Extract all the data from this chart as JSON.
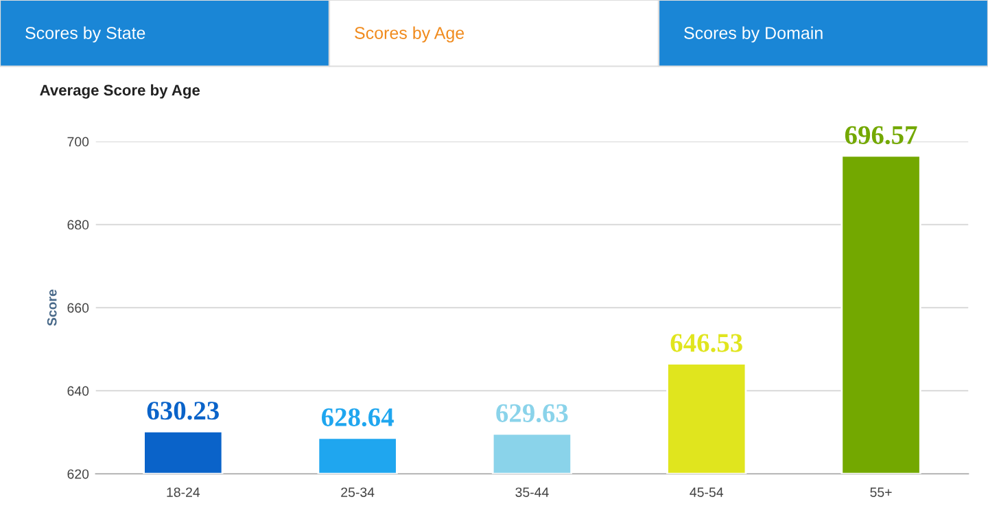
{
  "chart_data": {
    "type": "bar",
    "title": "Average Score by Age",
    "ylabel": "Score",
    "annotations": [
      "Scores by State",
      "Scores by Age",
      "Scores by Domain"
    ],
    "categories": [
      "18-24",
      "25-34",
      "35-44",
      "45-54",
      "55+"
    ],
    "values": [
      630.23,
      628.64,
      629.63,
      646.53,
      696.57
    ],
    "colors": [
      "#0a63c9",
      "#1fa6ef",
      "#8ad3ea",
      "#e0e51e",
      "#73a800"
    ],
    "data_labels": true,
    "ylim": [
      620,
      700
    ],
    "yticks": [
      620,
      640,
      660,
      680,
      700
    ],
    "grid": "y",
    "legend": false
  }
}
